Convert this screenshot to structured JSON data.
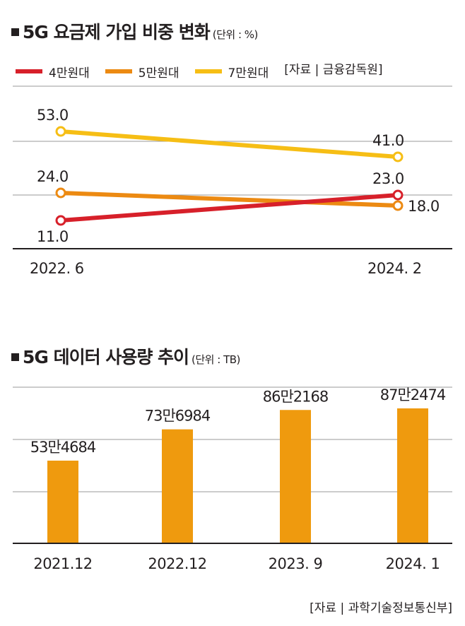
{
  "chart1": {
    "title": "5G 요금제 가입 비중 변화",
    "unit": "(단위 : %)",
    "source": "[자료 | 금융감독원]",
    "chart_data": {
      "type": "line",
      "x": [
        "2022. 6",
        "2024. 2"
      ],
      "series": [
        {
          "name": "4만원대",
          "color": "#d7202a",
          "values": [
            11.0,
            23.0
          ],
          "labels": [
            "11.0",
            "23.0"
          ]
        },
        {
          "name": "5만원대",
          "color": "#ec8a12",
          "values": [
            24.0,
            18.0
          ],
          "labels": [
            "24.0",
            "18.0"
          ]
        },
        {
          "name": "7만원대",
          "color": "#f6be15",
          "values": [
            53.0,
            41.0
          ],
          "labels": [
            "53.0",
            "41.0"
          ]
        }
      ],
      "grid": true,
      "legend": "top"
    }
  },
  "chart2": {
    "title": "5G 데이터 사용량 추이",
    "unit": "(단위 : TB)",
    "source": "[자료 | 과학기술정보통신부]",
    "chart_data": {
      "type": "bar",
      "categories": [
        "2021.12",
        "2022.12",
        "2023. 9",
        "2024. 1"
      ],
      "values": [
        534684,
        736984,
        862168,
        872474
      ],
      "labels": [
        "53만4684",
        "73만6984",
        "86만2168",
        "87만2474"
      ],
      "color": "#ef9a0e",
      "grid": true
    }
  }
}
